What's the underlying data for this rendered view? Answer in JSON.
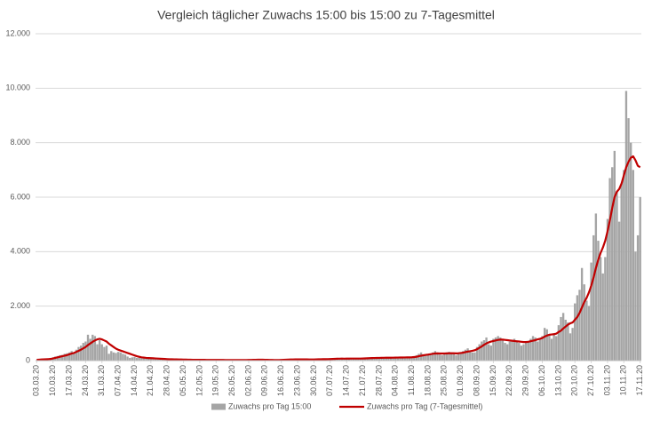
{
  "chart_data": {
    "type": "bar",
    "title": "Vergleich täglicher Zuwachs 15:00 bis 15:00 zu 7-Tagesmittel",
    "categories": [
      "03.03.20",
      null,
      null,
      null,
      null,
      null,
      null,
      "10.03.20",
      null,
      null,
      null,
      null,
      null,
      null,
      "17.03.20",
      null,
      null,
      null,
      null,
      null,
      null,
      "24.03.20",
      null,
      null,
      null,
      null,
      null,
      null,
      "31.03.20",
      null,
      null,
      null,
      null,
      null,
      null,
      "07.04.20",
      null,
      null,
      null,
      null,
      null,
      null,
      "14.04.20",
      null,
      null,
      null,
      null,
      null,
      null,
      "21.04.20",
      null,
      null,
      null,
      null,
      null,
      null,
      "28.04.20",
      null,
      null,
      null,
      null,
      null,
      null,
      "05.05.20",
      null,
      null,
      null,
      null,
      null,
      null,
      "12.05.20",
      null,
      null,
      null,
      null,
      null,
      null,
      "19.05.20",
      null,
      null,
      null,
      null,
      null,
      null,
      "26.05.20",
      null,
      null,
      null,
      null,
      null,
      null,
      "02.06.20",
      null,
      null,
      null,
      null,
      null,
      null,
      "09.06.20",
      null,
      null,
      null,
      null,
      null,
      null,
      "16.06.20",
      null,
      null,
      null,
      null,
      null,
      null,
      "23.06.20",
      null,
      null,
      null,
      null,
      null,
      null,
      "30.06.20",
      null,
      null,
      null,
      null,
      null,
      null,
      "07.07.20",
      null,
      null,
      null,
      null,
      null,
      null,
      "14.07.20",
      null,
      null,
      null,
      null,
      null,
      null,
      "21.07.20",
      null,
      null,
      null,
      null,
      null,
      null,
      "28.07.20",
      null,
      null,
      null,
      null,
      null,
      null,
      "04.08.20",
      null,
      null,
      null,
      null,
      null,
      null,
      "11.08.20",
      null,
      null,
      null,
      null,
      null,
      null,
      "18.08.20",
      null,
      null,
      null,
      null,
      null,
      null,
      "25.08.20",
      null,
      null,
      null,
      null,
      null,
      null,
      "01.09.20",
      null,
      null,
      null,
      null,
      null,
      null,
      "08.09.20",
      null,
      null,
      null,
      null,
      null,
      null,
      "15.09.20",
      null,
      null,
      null,
      null,
      null,
      null,
      "22.09.20",
      null,
      null,
      null,
      null,
      null,
      null,
      "29.09.20",
      null,
      null,
      null,
      null,
      null,
      null,
      "06.10.20",
      null,
      null,
      null,
      null,
      null,
      null,
      "13.10.20",
      null,
      null,
      null,
      null,
      null,
      null,
      "20.10.20",
      null,
      null,
      null,
      null,
      null,
      null,
      "27.10.20",
      null,
      null,
      null,
      null,
      null,
      null,
      "03.11.20",
      null,
      null,
      null,
      null,
      null,
      null,
      "10.11.20",
      null,
      null,
      null,
      null,
      null,
      null,
      "17.11.20"
    ],
    "series": [
      {
        "name": "Zuwachs pro Tag 15:00",
        "type": "bar",
        "color": "#a5a5a5",
        "values": [
          20,
          30,
          40,
          50,
          80,
          60,
          100,
          120,
          150,
          170,
          200,
          210,
          250,
          270,
          300,
          350,
          280,
          400,
          500,
          550,
          650,
          700,
          950,
          800,
          950,
          900,
          600,
          750,
          600,
          500,
          550,
          250,
          350,
          300,
          280,
          320,
          300,
          250,
          220,
          150,
          100,
          120,
          130,
          100,
          110,
          90,
          80,
          70,
          70,
          80,
          75,
          60,
          55,
          50,
          45,
          40,
          45,
          40,
          35,
          30,
          40,
          35,
          30,
          30,
          35,
          30,
          25,
          30,
          25,
          30,
          30,
          25,
          30,
          25,
          20,
          25,
          30,
          25,
          20,
          25,
          20,
          20,
          25,
          20,
          20,
          25,
          20,
          15,
          20,
          20,
          25,
          25,
          20,
          30,
          40,
          50,
          30,
          20,
          20,
          20,
          25,
          20,
          15,
          20,
          25,
          30,
          35,
          40,
          45,
          50,
          40,
          45,
          50,
          45,
          50,
          40,
          45,
          40,
          35,
          45,
          50,
          60,
          55,
          60,
          50,
          45,
          60,
          70,
          80,
          100,
          70,
          60,
          50,
          70,
          80,
          90,
          80,
          70,
          60,
          70,
          90,
          100,
          110,
          100,
          90,
          80,
          100,
          100,
          110,
          120,
          110,
          100,
          90,
          110,
          110,
          120,
          130,
          120,
          110,
          100,
          120,
          120,
          150,
          200,
          250,
          300,
          200,
          180,
          220,
          250,
          300,
          350,
          300,
          220,
          200,
          280,
          300,
          320,
          300,
          250,
          200,
          250,
          300,
          350,
          400,
          450,
          350,
          300,
          300,
          500,
          600,
          700,
          750,
          850,
          600,
          550,
          800,
          850,
          900,
          850,
          750,
          650,
          600,
          700,
          750,
          800,
          700,
          650,
          550,
          600,
          650,
          700,
          800,
          900,
          850,
          700,
          800,
          900,
          1200,
          1150,
          950,
          800,
          1000,
          900,
          1300,
          1600,
          1750,
          1500,
          1400,
          1000,
          1200,
          2100,
          2400,
          2600,
          3400,
          2800,
          2200,
          2000,
          3600,
          4600,
          5400,
          4400,
          3800,
          3200,
          3800,
          5200,
          6700,
          7100,
          7700,
          6200,
          5100,
          6500,
          7000,
          9900,
          8900,
          8000,
          7000,
          4000,
          4600,
          6000
        ]
      },
      {
        "name": "Zuwachs pro Tag (7-Tagesmittel)",
        "type": "line",
        "color": "#c00000",
        "values": [
          30,
          35,
          40,
          45,
          50,
          55,
          60,
          80,
          100,
          120,
          140,
          160,
          180,
          200,
          230,
          260,
          280,
          320,
          360,
          400,
          450,
          500,
          570,
          630,
          690,
          740,
          780,
          800,
          780,
          740,
          700,
          620,
          560,
          500,
          440,
          400,
          370,
          340,
          310,
          280,
          250,
          220,
          190,
          160,
          140,
          120,
          110,
          100,
          95,
          90,
          85,
          80,
          75,
          70,
          65,
          60,
          55,
          50,
          48,
          46,
          44,
          42,
          40,
          38,
          36,
          34,
          32,
          31,
          30,
          30,
          29,
          28,
          28,
          27,
          27,
          26,
          26,
          25,
          25,
          24,
          24,
          23,
          23,
          22,
          22,
          22,
          21,
          21,
          21,
          21,
          22,
          24,
          26,
          28,
          30,
          32,
          33,
          32,
          31,
          29,
          27,
          25,
          23,
          22,
          21,
          24,
          28,
          32,
          36,
          40,
          42,
          44,
          45,
          46,
          46,
          45,
          44,
          43,
          42,
          43,
          45,
          48,
          51,
          53,
          54,
          55,
          58,
          62,
          66,
          70,
          72,
          73,
          72,
          73,
          74,
          75,
          76,
          76,
          75,
          75,
          78,
          82,
          86,
          90,
          94,
          96,
          98,
          100,
          102,
          104,
          105,
          106,
          107,
          108,
          110,
          112,
          114,
          115,
          116,
          117,
          118,
          122,
          130,
          140,
          160,
          180,
          195,
          210,
          220,
          235,
          250,
          260,
          265,
          262,
          260,
          262,
          265,
          268,
          270,
          268,
          265,
          270,
          280,
          290,
          310,
          330,
          345,
          360,
          380,
          420,
          470,
          520,
          580,
          630,
          670,
          700,
          720,
          740,
          760,
          770,
          770,
          760,
          750,
          740,
          730,
          720,
          710,
          700,
          690,
          680,
          680,
          690,
          710,
          730,
          750,
          780,
          800,
          830,
          880,
          920,
          950,
          960,
          970,
          990,
          1050,
          1100,
          1180,
          1250,
          1320,
          1370,
          1400,
          1500,
          1600,
          1750,
          1950,
          2150,
          2300,
          2500,
          2750,
          3050,
          3400,
          3700,
          3950,
          4150,
          4400,
          4750,
          5150,
          5600,
          6000,
          6200,
          6300,
          6500,
          6800,
          7100,
          7300,
          7450,
          7500,
          7350,
          7150,
          7100
        ]
      }
    ],
    "ylim": [
      0,
      12000
    ],
    "yticks": [
      0,
      {
        "value": 2000,
        "label": "2.000"
      },
      {
        "value": 4000,
        "label": "4.000"
      },
      {
        "value": 6000,
        "label": "6.000"
      },
      {
        "value": 8000,
        "label": "8.000"
      },
      {
        "value": 10000,
        "label": "10.000"
      },
      {
        "value": 12000,
        "label": "12.000"
      }
    ],
    "grid": true,
    "legend": "bottom"
  }
}
